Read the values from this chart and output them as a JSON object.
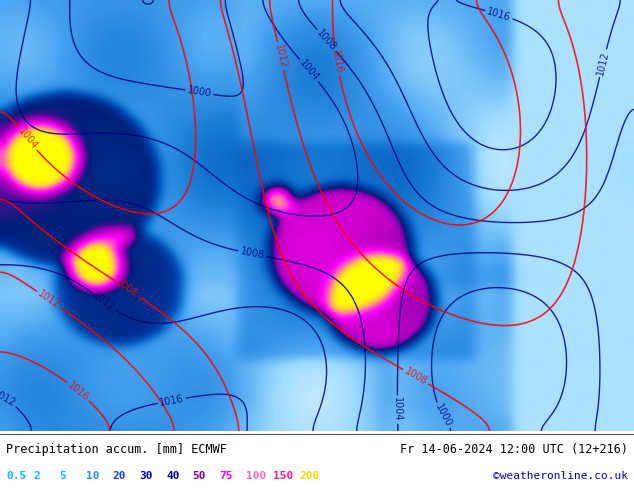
{
  "title_left": "Precipitation accum. [mm] ECMWF",
  "title_right": "Fr 14-06-2024 12:00 UTC (12+216)",
  "credit": "©weatheronline.co.uk",
  "colorbar_values": [
    0.5,
    2,
    5,
    10,
    20,
    30,
    40,
    50,
    75,
    100,
    150,
    200
  ],
  "colorbar_colors": [
    "#b0e0ff",
    "#78c8ff",
    "#46a0f0",
    "#1478d2",
    "#0050b4",
    "#003296",
    "#001e78",
    "#8b00b4",
    "#c800c8",
    "#ff00ff",
    "#ff69b4",
    "#ffff00"
  ],
  "colorbar_text_colors": [
    "#00bfff",
    "#00bfff",
    "#00bfff",
    "#1e90ff",
    "#1e3cff",
    "#0000cd",
    "#000080",
    "#8b008b",
    "#ff00ff",
    "#ff69b4",
    "#ff1493",
    "#ffd700"
  ],
  "bg_color": "#a8d8f0",
  "map_bg": "#87ceeb",
  "fig_width": 6.34,
  "fig_height": 4.9,
  "dpi": 100
}
